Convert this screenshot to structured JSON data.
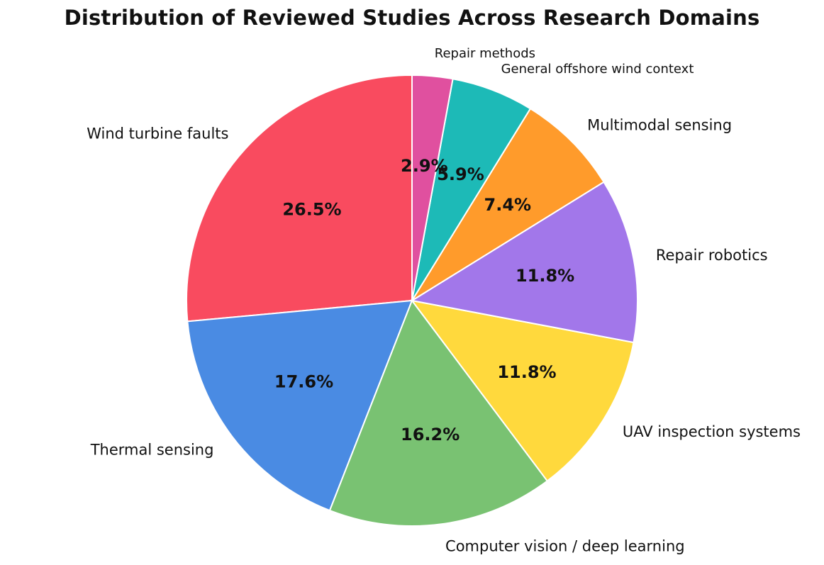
{
  "chart_data": {
    "type": "pie",
    "title": "Distribution of Reviewed Studies Across Research Domains",
    "start_angle_deg": 90,
    "direction": "counterclockwise",
    "slices": [
      {
        "label": "Wind turbine faults",
        "value": 26.5,
        "pct_text": "26.5%",
        "color": "#F94B5F"
      },
      {
        "label": "Thermal sensing",
        "value": 17.6,
        "pct_text": "17.6%",
        "color": "#4A8BE3"
      },
      {
        "label": "Computer vision / deep learning",
        "value": 16.2,
        "pct_text": "16.2%",
        "color": "#79C272"
      },
      {
        "label": "UAV inspection systems",
        "value": 11.8,
        "pct_text": "11.8%",
        "color": "#FFD93D"
      },
      {
        "label": "Repair robotics",
        "value": 11.8,
        "pct_text": "11.8%",
        "color": "#A277EA"
      },
      {
        "label": "Multimodal sensing",
        "value": 7.4,
        "pct_text": "7.4%",
        "color": "#FF9B2B"
      },
      {
        "label": "General offshore wind context",
        "value": 5.9,
        "pct_text": "5.9%",
        "color": "#1DBAB7"
      },
      {
        "label": "Repair methods",
        "value": 2.9,
        "pct_text": "2.9%",
        "color": "#E0509F"
      }
    ]
  }
}
